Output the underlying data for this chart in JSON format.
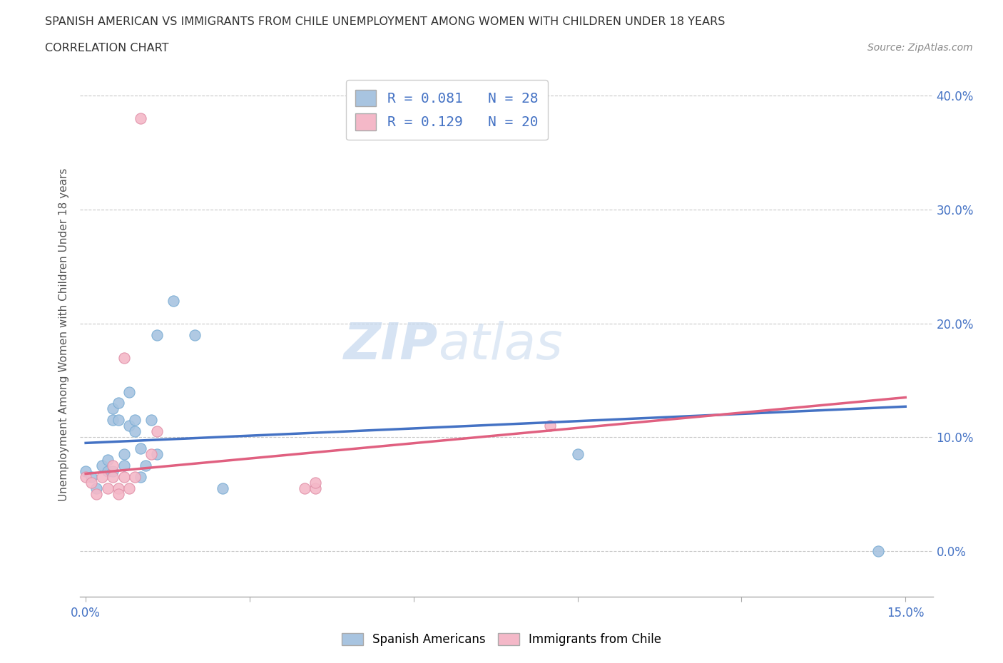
{
  "title": "SPANISH AMERICAN VS IMMIGRANTS FROM CHILE UNEMPLOYMENT AMONG WOMEN WITH CHILDREN UNDER 18 YEARS",
  "subtitle": "CORRELATION CHART",
  "source": "Source: ZipAtlas.com",
  "ylabel": "Unemployment Among Women with Children Under 18 years",
  "xlim": [
    -0.001,
    0.155
  ],
  "ylim": [
    -0.04,
    0.42
  ],
  "xticks": [
    0.0,
    0.03,
    0.06,
    0.09,
    0.12,
    0.15
  ],
  "yticks": [
    0.0,
    0.1,
    0.2,
    0.3,
    0.4
  ],
  "xtick_labels": [
    "0.0%",
    "",
    "",
    "",
    "",
    "15.0%"
  ],
  "right_ytick_labels": [
    "0.0%",
    "10.0%",
    "20.0%",
    "30.0%",
    "40.0%"
  ],
  "series1_name": "Spanish Americans",
  "series1_color": "#a8c4e0",
  "series1_edge_color": "#7aadd4",
  "series1_line_color": "#4472c4",
  "series1_R": 0.081,
  "series1_N": 28,
  "series2_name": "Immigrants from Chile",
  "series2_color": "#f4b8c8",
  "series2_edge_color": "#e090a8",
  "series2_line_color": "#e06080",
  "series2_R": 0.129,
  "series2_N": 20,
  "watermark_zip": "ZIP",
  "watermark_atlas": "atlas",
  "background_color": "#ffffff",
  "grid_color": "#c8c8c8",
  "series1_x": [
    0.0,
    0.001,
    0.002,
    0.003,
    0.004,
    0.004,
    0.005,
    0.005,
    0.005,
    0.006,
    0.006,
    0.007,
    0.007,
    0.008,
    0.008,
    0.009,
    0.009,
    0.01,
    0.01,
    0.011,
    0.012,
    0.013,
    0.013,
    0.016,
    0.02,
    0.025,
    0.09,
    0.145
  ],
  "series1_y": [
    0.07,
    0.065,
    0.055,
    0.075,
    0.08,
    0.07,
    0.115,
    0.125,
    0.07,
    0.13,
    0.115,
    0.085,
    0.075,
    0.14,
    0.11,
    0.115,
    0.105,
    0.09,
    0.065,
    0.075,
    0.115,
    0.19,
    0.085,
    0.22,
    0.19,
    0.055,
    0.085,
    0.0
  ],
  "series2_x": [
    0.0,
    0.001,
    0.002,
    0.003,
    0.004,
    0.005,
    0.005,
    0.006,
    0.006,
    0.007,
    0.007,
    0.008,
    0.009,
    0.01,
    0.012,
    0.013,
    0.04,
    0.042,
    0.042,
    0.085
  ],
  "series2_y": [
    0.065,
    0.06,
    0.05,
    0.065,
    0.055,
    0.075,
    0.065,
    0.055,
    0.05,
    0.065,
    0.17,
    0.055,
    0.065,
    0.38,
    0.085,
    0.105,
    0.055,
    0.055,
    0.06,
    0.11
  ],
  "trend1_x0": 0.0,
  "trend1_y0": 0.095,
  "trend1_x1": 0.15,
  "trend1_y1": 0.127,
  "trend2_x0": 0.0,
  "trend2_y0": 0.068,
  "trend2_x1": 0.15,
  "trend2_y1": 0.135
}
